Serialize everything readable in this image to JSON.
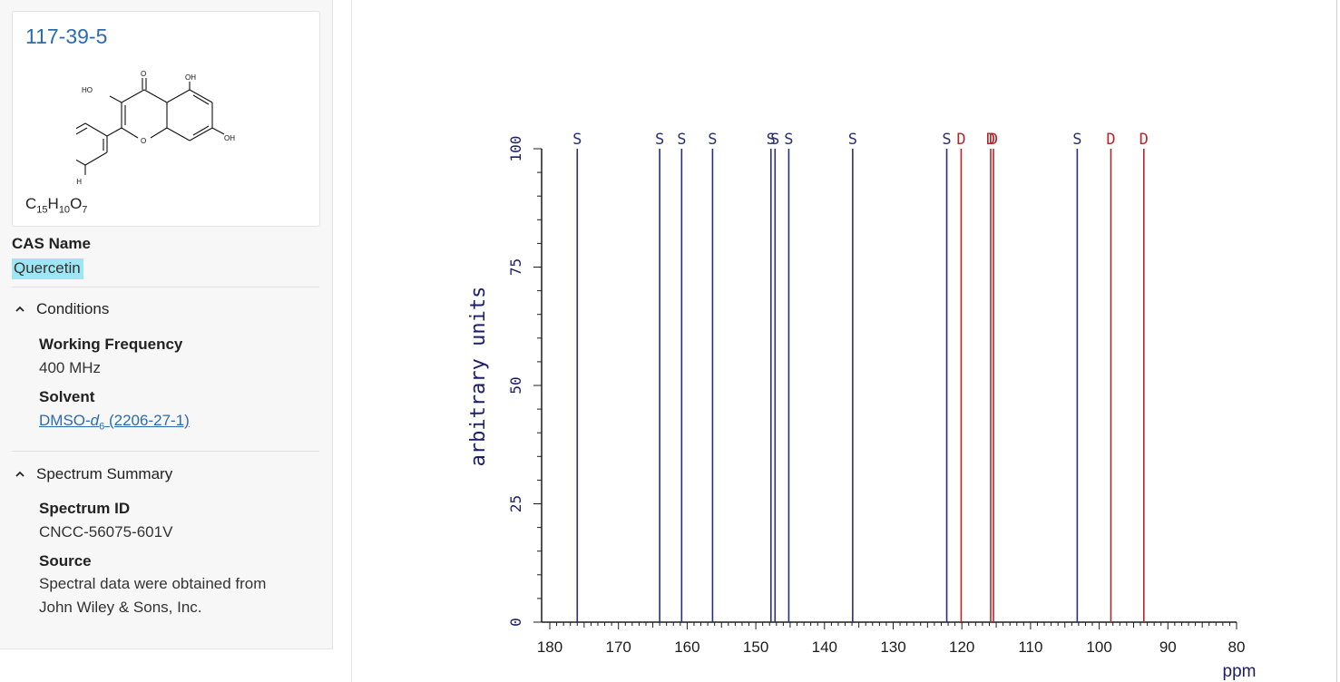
{
  "compound": {
    "cas_number": "117-39-5",
    "formula": {
      "c": "15",
      "h": "10",
      "o": "7"
    },
    "structure_labels": [
      "O",
      "OH",
      "HO",
      "OH",
      "HO",
      "OH",
      "O"
    ]
  },
  "cas_name": {
    "label": "CAS Name",
    "value": "Quercetin"
  },
  "conditions": {
    "header": "Conditions",
    "working_frequency_label": "Working Frequency",
    "working_frequency_value": "400 MHz",
    "solvent_label": "Solvent",
    "solvent_name": "DMSO-",
    "solvent_italic": "d",
    "solvent_sub": "6",
    "solvent_cas": " (2206-27-1)"
  },
  "spectrum_summary": {
    "header": "Spectrum Summary",
    "spectrum_id_label": "Spectrum ID",
    "spectrum_id_value": "CNCC-56075-601V",
    "source_label": "Source",
    "source_line1": "Spectral data were obtained from",
    "source_line2": "John Wiley & Sons, Inc."
  },
  "colors": {
    "link": "#2b6cb0",
    "highlight": "#9ee6f3",
    "singlet": "#2a2f72",
    "doublet": "#b0282e"
  },
  "chart_data": {
    "type": "bar",
    "title": "",
    "xlabel": "ppm",
    "ylabel": "arbitrary units",
    "xlim": [
      180,
      80
    ],
    "ylim": [
      0,
      100
    ],
    "xticks": [
      "180",
      "170",
      "160",
      "150",
      "140",
      "130",
      "120",
      "110",
      "100",
      "90",
      "80"
    ],
    "yticks": [
      "0",
      "25",
      "50",
      "75",
      "100"
    ],
    "peaks": [
      {
        "ppm": 176.0,
        "intensity": 100,
        "multiplicity": "S"
      },
      {
        "ppm": 164.0,
        "intensity": 100,
        "multiplicity": "S"
      },
      {
        "ppm": 160.8,
        "intensity": 100,
        "multiplicity": "S"
      },
      {
        "ppm": 156.3,
        "intensity": 100,
        "multiplicity": "S"
      },
      {
        "ppm": 147.8,
        "intensity": 100,
        "multiplicity": "S"
      },
      {
        "ppm": 147.2,
        "intensity": 100,
        "multiplicity": "S"
      },
      {
        "ppm": 145.2,
        "intensity": 100,
        "multiplicity": "S"
      },
      {
        "ppm": 135.9,
        "intensity": 100,
        "multiplicity": "S"
      },
      {
        "ppm": 122.2,
        "intensity": 100,
        "multiplicity": "S"
      },
      {
        "ppm": 120.1,
        "intensity": 100,
        "multiplicity": "D"
      },
      {
        "ppm": 115.8,
        "intensity": 100,
        "multiplicity": "D"
      },
      {
        "ppm": 115.4,
        "intensity": 100,
        "multiplicity": "D"
      },
      {
        "ppm": 103.2,
        "intensity": 100,
        "multiplicity": "S"
      },
      {
        "ppm": 98.3,
        "intensity": 100,
        "multiplicity": "D"
      },
      {
        "ppm": 93.5,
        "intensity": 100,
        "multiplicity": "D"
      }
    ]
  }
}
